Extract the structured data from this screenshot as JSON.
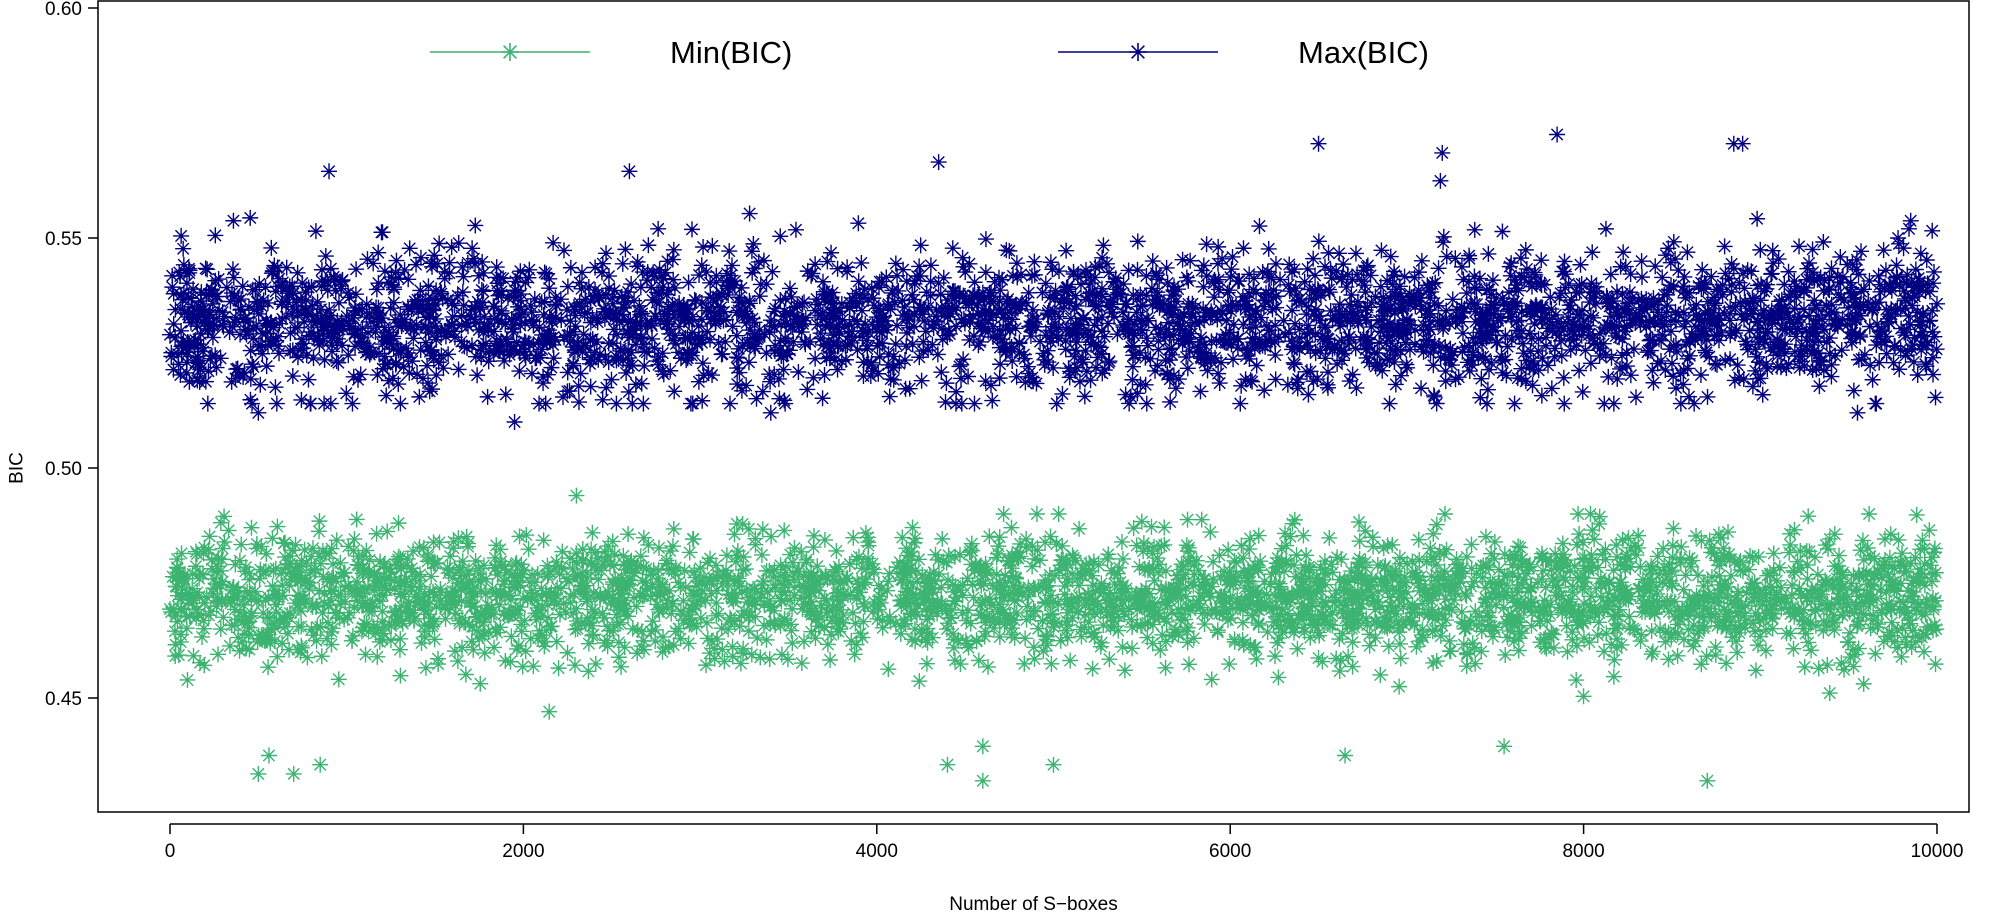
{
  "chart_data": {
    "type": "scatter",
    "title": "",
    "xlabel": "Number of S−boxes",
    "ylabel": "BIC",
    "xlim": [
      -800,
      10200
    ],
    "ylim": [
      0.425,
      0.6
    ],
    "x_ticks": [
      0,
      2000,
      4000,
      6000,
      8000,
      10000
    ],
    "x_tick_labels": [
      "0",
      "2000",
      "4000",
      "6000",
      "8000",
      "10000"
    ],
    "y_ticks": [
      0.45,
      0.5,
      0.55,
      0.6
    ],
    "y_tick_labels": [
      "0.45",
      "0.50",
      "0.55",
      "0.60"
    ],
    "grid": false,
    "marker": "asterisk",
    "legend": {
      "placement": "top",
      "orientation": "horizontal"
    },
    "series": [
      {
        "name": "Min(BIC)",
        "color": "#3CB371",
        "x_range": [
          0,
          10000
        ],
        "points_count": 10000,
        "typical_range": [
          0.455,
          0.49
        ],
        "center": 0.472,
        "observed_min": 0.432,
        "observed_max": 0.494,
        "outliers": [
          {
            "x": 500,
            "y": 0.4335
          },
          {
            "x": 700,
            "y": 0.4335
          },
          {
            "x": 850,
            "y": 0.4355
          },
          {
            "x": 4400,
            "y": 0.4355
          },
          {
            "x": 4600,
            "y": 0.432
          },
          {
            "x": 5000,
            "y": 0.4355
          },
          {
            "x": 8700,
            "y": 0.432
          },
          {
            "x": 6650,
            "y": 0.4375
          },
          {
            "x": 560,
            "y": 0.4375
          },
          {
            "x": 2300,
            "y": 0.494
          },
          {
            "x": 4600,
            "y": 0.4395
          },
          {
            "x": 7550,
            "y": 0.4395
          }
        ]
      },
      {
        "name": "Max(BIC)",
        "color": "#000080",
        "x_range": [
          0,
          10000
        ],
        "points_count": 10000,
        "typical_range": [
          0.515,
          0.555
        ],
        "center": 0.532,
        "observed_min": 0.51,
        "observed_max": 0.5725,
        "outliers": [
          {
            "x": 1950,
            "y": 0.51
          },
          {
            "x": 7850,
            "y": 0.5725
          },
          {
            "x": 6500,
            "y": 0.5705
          },
          {
            "x": 8850,
            "y": 0.5705
          },
          {
            "x": 8900,
            "y": 0.5705
          },
          {
            "x": 7200,
            "y": 0.5685
          },
          {
            "x": 4350,
            "y": 0.5665
          },
          {
            "x": 900,
            "y": 0.5645
          },
          {
            "x": 2600,
            "y": 0.5645
          },
          {
            "x": 500,
            "y": 0.512
          },
          {
            "x": 3400,
            "y": 0.512
          },
          {
            "x": 9550,
            "y": 0.512
          }
        ]
      }
    ]
  }
}
